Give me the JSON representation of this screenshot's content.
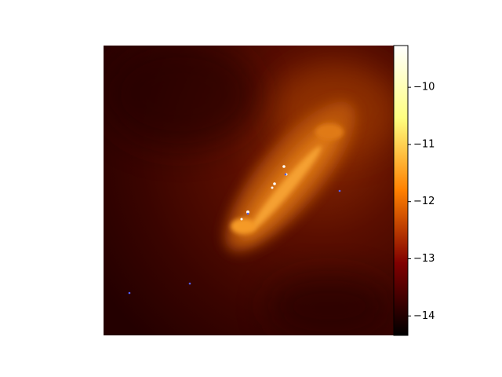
{
  "chart_data": {
    "type": "image",
    "colormap": "afmhot",
    "clim": [
      -14.34,
      -9.27
    ],
    "cticks": [
      {
        "value": -10,
        "label": "−10"
      },
      {
        "value": -11,
        "label": "−11"
      },
      {
        "value": -12,
        "label": "−12"
      },
      {
        "value": -13,
        "label": "−13"
      },
      {
        "value": -14,
        "label": "−14"
      }
    ]
  }
}
